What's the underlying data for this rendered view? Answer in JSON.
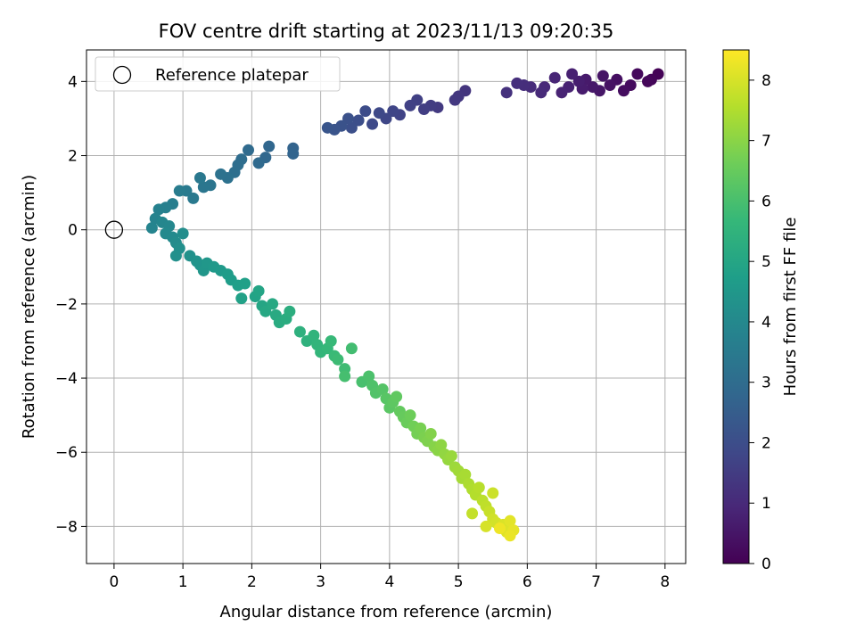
{
  "chart_data": {
    "type": "scatter",
    "title": "FOV centre drift starting at 2023/11/13 09:20:35",
    "xlabel": "Angular distance from reference (arcmin)",
    "ylabel": "Rotation from reference (arcmin)",
    "xlim": [
      -0.4,
      8.3
    ],
    "ylim": [
      -9.0,
      4.85
    ],
    "xticks": [
      0,
      1,
      2,
      3,
      4,
      5,
      6,
      7,
      8
    ],
    "yticks": [
      -8,
      -6,
      -4,
      -2,
      0,
      2,
      4
    ],
    "grid": true,
    "legend": {
      "placement": "top-left",
      "entries": [
        "Reference platepar"
      ]
    },
    "reference_point": {
      "x": 0,
      "y": 0
    },
    "colorbar": {
      "label": "Hours from first FF file",
      "range": [
        0,
        8.5
      ],
      "ticks": [
        0,
        1,
        2,
        3,
        4,
        5,
        6,
        7,
        8
      ],
      "colormap": "viridis"
    },
    "points": [
      {
        "x": 7.9,
        "y": 4.2,
        "h": 0.05
      },
      {
        "x": 7.8,
        "y": 4.05,
        "h": 0.1
      },
      {
        "x": 7.75,
        "y": 4.0,
        "h": 0.15
      },
      {
        "x": 7.6,
        "y": 4.2,
        "h": 0.2
      },
      {
        "x": 7.5,
        "y": 3.9,
        "h": 0.25
      },
      {
        "x": 7.4,
        "y": 3.75,
        "h": 0.3
      },
      {
        "x": 7.3,
        "y": 4.05,
        "h": 0.35
      },
      {
        "x": 7.2,
        "y": 3.9,
        "h": 0.4
      },
      {
        "x": 7.1,
        "y": 4.15,
        "h": 0.45
      },
      {
        "x": 7.05,
        "y": 3.75,
        "h": 0.5
      },
      {
        "x": 6.95,
        "y": 3.85,
        "h": 0.55
      },
      {
        "x": 6.85,
        "y": 4.05,
        "h": 0.6
      },
      {
        "x": 6.8,
        "y": 3.8,
        "h": 0.65
      },
      {
        "x": 6.75,
        "y": 4.0,
        "h": 0.7
      },
      {
        "x": 6.65,
        "y": 4.2,
        "h": 0.75
      },
      {
        "x": 6.6,
        "y": 3.85,
        "h": 0.8
      },
      {
        "x": 6.5,
        "y": 3.7,
        "h": 0.85
      },
      {
        "x": 6.4,
        "y": 4.1,
        "h": 0.9
      },
      {
        "x": 6.25,
        "y": 3.85,
        "h": 0.95
      },
      {
        "x": 6.2,
        "y": 3.7,
        "h": 1.0
      },
      {
        "x": 6.05,
        "y": 3.85,
        "h": 1.05
      },
      {
        "x": 5.95,
        "y": 3.9,
        "h": 1.1
      },
      {
        "x": 5.85,
        "y": 3.95,
        "h": 1.15
      },
      {
        "x": 5.7,
        "y": 3.7,
        "h": 1.2
      },
      {
        "x": 5.1,
        "y": 3.75,
        "h": 1.3
      },
      {
        "x": 5.0,
        "y": 3.6,
        "h": 1.35
      },
      {
        "x": 4.95,
        "y": 3.5,
        "h": 1.4
      },
      {
        "x": 4.7,
        "y": 3.3,
        "h": 1.45
      },
      {
        "x": 4.6,
        "y": 3.35,
        "h": 1.5
      },
      {
        "x": 4.5,
        "y": 3.25,
        "h": 1.55
      },
      {
        "x": 4.4,
        "y": 3.5,
        "h": 1.6
      },
      {
        "x": 4.3,
        "y": 3.35,
        "h": 1.65
      },
      {
        "x": 4.15,
        "y": 3.1,
        "h": 1.7
      },
      {
        "x": 4.05,
        "y": 3.2,
        "h": 1.75
      },
      {
        "x": 3.95,
        "y": 3.0,
        "h": 1.8
      },
      {
        "x": 3.85,
        "y": 3.15,
        "h": 1.85
      },
      {
        "x": 3.75,
        "y": 2.85,
        "h": 1.9
      },
      {
        "x": 3.65,
        "y": 3.2,
        "h": 1.95
      },
      {
        "x": 3.55,
        "y": 2.95,
        "h": 2.0
      },
      {
        "x": 3.45,
        "y": 2.75,
        "h": 2.05
      },
      {
        "x": 3.4,
        "y": 3.0,
        "h": 2.1
      },
      {
        "x": 3.3,
        "y": 2.8,
        "h": 2.15
      },
      {
        "x": 3.2,
        "y": 2.7,
        "h": 2.2
      },
      {
        "x": 3.1,
        "y": 2.75,
        "h": 2.25
      },
      {
        "x": 2.6,
        "y": 2.2,
        "h": 2.7
      },
      {
        "x": 2.6,
        "y": 2.05,
        "h": 2.75
      },
      {
        "x": 2.25,
        "y": 2.25,
        "h": 2.8
      },
      {
        "x": 2.2,
        "y": 1.95,
        "h": 2.85
      },
      {
        "x": 2.1,
        "y": 1.8,
        "h": 2.9
      },
      {
        "x": 1.95,
        "y": 2.15,
        "h": 2.95
      },
      {
        "x": 1.85,
        "y": 1.9,
        "h": 3.0
      },
      {
        "x": 1.8,
        "y": 1.75,
        "h": 3.05
      },
      {
        "x": 1.75,
        "y": 1.55,
        "h": 3.1
      },
      {
        "x": 1.65,
        "y": 1.4,
        "h": 3.15
      },
      {
        "x": 1.55,
        "y": 1.5,
        "h": 3.2
      },
      {
        "x": 1.4,
        "y": 1.2,
        "h": 3.3
      },
      {
        "x": 1.3,
        "y": 1.15,
        "h": 3.35
      },
      {
        "x": 1.25,
        "y": 1.4,
        "h": 3.4
      },
      {
        "x": 1.15,
        "y": 0.85,
        "h": 3.45
      },
      {
        "x": 1.05,
        "y": 1.05,
        "h": 3.5
      },
      {
        "x": 0.95,
        "y": 1.05,
        "h": 3.55
      },
      {
        "x": 0.85,
        "y": 0.7,
        "h": 3.65
      },
      {
        "x": 0.75,
        "y": 0.6,
        "h": 3.7
      },
      {
        "x": 0.65,
        "y": 0.55,
        "h": 3.75
      },
      {
        "x": 0.6,
        "y": 0.3,
        "h": 3.8
      },
      {
        "x": 0.55,
        "y": 0.05,
        "h": 3.85
      },
      {
        "x": 0.7,
        "y": 0.2,
        "h": 3.9
      },
      {
        "x": 0.8,
        "y": 0.1,
        "h": 3.95
      },
      {
        "x": 0.75,
        "y": -0.1,
        "h": 4.0
      },
      {
        "x": 0.85,
        "y": -0.2,
        "h": 4.05
      },
      {
        "x": 0.9,
        "y": -0.35,
        "h": 4.1
      },
      {
        "x": 1.0,
        "y": -0.1,
        "h": 4.15
      },
      {
        "x": 0.95,
        "y": -0.5,
        "h": 4.2
      },
      {
        "x": 0.9,
        "y": -0.7,
        "h": 4.25
      },
      {
        "x": 1.1,
        "y": -0.7,
        "h": 4.3
      },
      {
        "x": 1.2,
        "y": -0.85,
        "h": 4.35
      },
      {
        "x": 1.25,
        "y": -0.95,
        "h": 4.4
      },
      {
        "x": 1.3,
        "y": -1.1,
        "h": 4.45
      },
      {
        "x": 1.35,
        "y": -0.9,
        "h": 4.5
      },
      {
        "x": 1.45,
        "y": -1.0,
        "h": 4.55
      },
      {
        "x": 1.55,
        "y": -1.1,
        "h": 4.6
      },
      {
        "x": 1.65,
        "y": -1.2,
        "h": 4.65
      },
      {
        "x": 1.7,
        "y": -1.35,
        "h": 4.7
      },
      {
        "x": 1.8,
        "y": -1.5,
        "h": 4.75
      },
      {
        "x": 1.9,
        "y": -1.45,
        "h": 4.8
      },
      {
        "x": 1.85,
        "y": -1.85,
        "h": 4.85
      },
      {
        "x": 2.05,
        "y": -1.8,
        "h": 4.9
      },
      {
        "x": 2.1,
        "y": -1.65,
        "h": 4.95
      },
      {
        "x": 2.15,
        "y": -2.05,
        "h": 5.0
      },
      {
        "x": 2.2,
        "y": -2.2,
        "h": 5.05
      },
      {
        "x": 2.3,
        "y": -2.0,
        "h": 5.1
      },
      {
        "x": 2.35,
        "y": -2.3,
        "h": 5.15
      },
      {
        "x": 2.4,
        "y": -2.5,
        "h": 5.2
      },
      {
        "x": 2.5,
        "y": -2.4,
        "h": 5.25
      },
      {
        "x": 2.55,
        "y": -2.2,
        "h": 5.3
      },
      {
        "x": 2.7,
        "y": -2.75,
        "h": 5.4
      },
      {
        "x": 2.8,
        "y": -3.0,
        "h": 5.45
      },
      {
        "x": 2.9,
        "y": -2.85,
        "h": 5.5
      },
      {
        "x": 2.95,
        "y": -3.1,
        "h": 5.55
      },
      {
        "x": 3.0,
        "y": -3.3,
        "h": 5.6
      },
      {
        "x": 3.1,
        "y": -3.2,
        "h": 5.65
      },
      {
        "x": 3.15,
        "y": -3.0,
        "h": 5.7
      },
      {
        "x": 3.2,
        "y": -3.4,
        "h": 5.75
      },
      {
        "x": 3.25,
        "y": -3.5,
        "h": 5.8
      },
      {
        "x": 3.35,
        "y": -3.75,
        "h": 5.85
      },
      {
        "x": 3.45,
        "y": -3.2,
        "h": 5.9
      },
      {
        "x": 3.35,
        "y": -3.95,
        "h": 5.95
      },
      {
        "x": 3.6,
        "y": -4.1,
        "h": 6.0
      },
      {
        "x": 3.7,
        "y": -3.95,
        "h": 6.05
      },
      {
        "x": 3.75,
        "y": -4.2,
        "h": 6.1
      },
      {
        "x": 3.8,
        "y": -4.4,
        "h": 6.15
      },
      {
        "x": 3.9,
        "y": -4.3,
        "h": 6.2
      },
      {
        "x": 3.95,
        "y": -4.55,
        "h": 6.25
      },
      {
        "x": 4.0,
        "y": -4.8,
        "h": 6.3
      },
      {
        "x": 4.05,
        "y": -4.65,
        "h": 6.35
      },
      {
        "x": 4.1,
        "y": -4.5,
        "h": 6.4
      },
      {
        "x": 4.15,
        "y": -4.9,
        "h": 6.45
      },
      {
        "x": 4.2,
        "y": -5.05,
        "h": 6.5
      },
      {
        "x": 4.25,
        "y": -5.2,
        "h": 6.55
      },
      {
        "x": 4.3,
        "y": -5.0,
        "h": 6.6
      },
      {
        "x": 4.35,
        "y": -5.3,
        "h": 6.65
      },
      {
        "x": 4.4,
        "y": -5.5,
        "h": 6.7
      },
      {
        "x": 4.45,
        "y": -5.35,
        "h": 6.75
      },
      {
        "x": 4.5,
        "y": -5.6,
        "h": 6.8
      },
      {
        "x": 4.55,
        "y": -5.7,
        "h": 6.85
      },
      {
        "x": 4.6,
        "y": -5.5,
        "h": 6.9
      },
      {
        "x": 4.65,
        "y": -5.85,
        "h": 6.95
      },
      {
        "x": 4.7,
        "y": -5.95,
        "h": 7.0
      },
      {
        "x": 4.75,
        "y": -5.8,
        "h": 7.05
      },
      {
        "x": 4.8,
        "y": -6.05,
        "h": 7.1
      },
      {
        "x": 4.85,
        "y": -6.2,
        "h": 7.15
      },
      {
        "x": 4.9,
        "y": -6.1,
        "h": 7.2
      },
      {
        "x": 4.95,
        "y": -6.4,
        "h": 7.25
      },
      {
        "x": 5.0,
        "y": -6.5,
        "h": 7.3
      },
      {
        "x": 5.05,
        "y": -6.7,
        "h": 7.35
      },
      {
        "x": 5.1,
        "y": -6.6,
        "h": 7.4
      },
      {
        "x": 5.15,
        "y": -6.85,
        "h": 7.45
      },
      {
        "x": 5.2,
        "y": -7.0,
        "h": 7.5
      },
      {
        "x": 5.25,
        "y": -7.15,
        "h": 7.55
      },
      {
        "x": 5.3,
        "y": -6.95,
        "h": 7.6
      },
      {
        "x": 5.35,
        "y": -7.3,
        "h": 7.65
      },
      {
        "x": 5.4,
        "y": -7.45,
        "h": 7.7
      },
      {
        "x": 5.2,
        "y": -7.65,
        "h": 7.75
      },
      {
        "x": 5.45,
        "y": -7.6,
        "h": 7.8
      },
      {
        "x": 5.5,
        "y": -7.1,
        "h": 7.85
      },
      {
        "x": 5.5,
        "y": -7.8,
        "h": 7.9
      },
      {
        "x": 5.55,
        "y": -7.9,
        "h": 7.95
      },
      {
        "x": 5.4,
        "y": -8.0,
        "h": 8.0
      },
      {
        "x": 5.65,
        "y": -7.95,
        "h": 8.05
      },
      {
        "x": 5.7,
        "y": -8.15,
        "h": 8.1
      },
      {
        "x": 5.75,
        "y": -7.85,
        "h": 8.15
      },
      {
        "x": 5.8,
        "y": -8.1,
        "h": 8.2
      },
      {
        "x": 5.75,
        "y": -8.25,
        "h": 8.25
      },
      {
        "x": 5.6,
        "y": -8.05,
        "h": 8.3
      }
    ]
  }
}
